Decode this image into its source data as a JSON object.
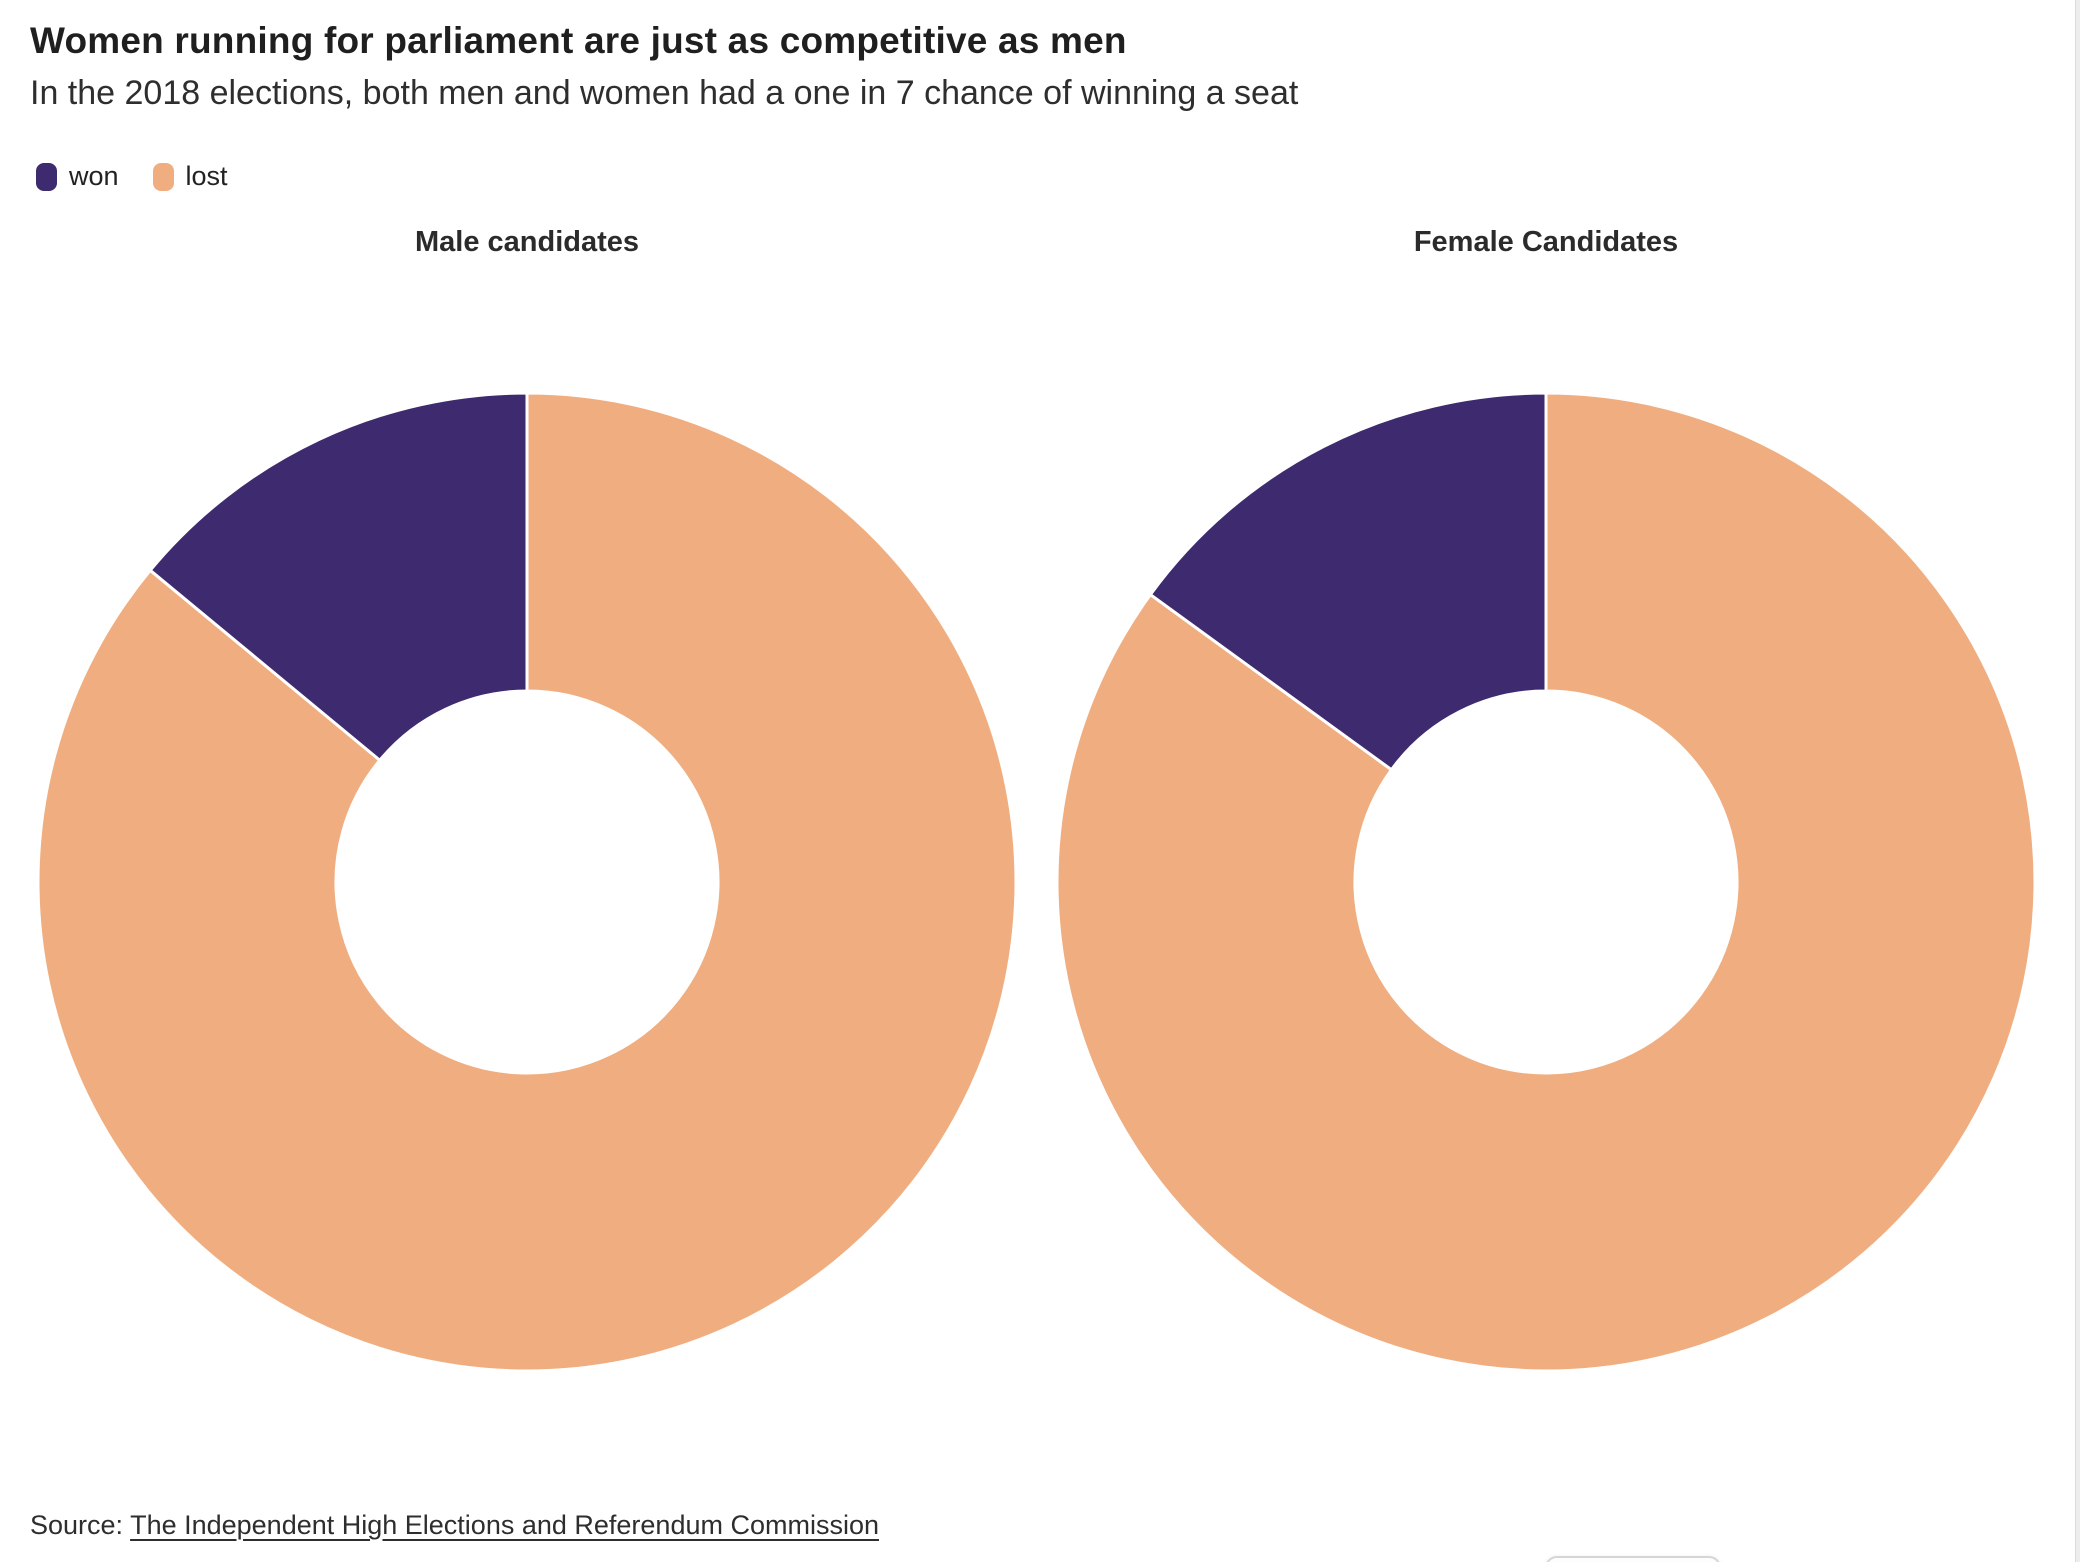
{
  "header": {
    "title": "Women running for parliament are just as competitive as men",
    "subtitle": "In the 2018 elections, both men and women had a one in 7 chance of winning a seat"
  },
  "colors": {
    "won": "#3e2a6f",
    "lost": "#f0ae80",
    "separator": "#ffffff"
  },
  "legend": {
    "items": [
      {
        "label": "won",
        "key": "won"
      },
      {
        "label": "lost",
        "key": "lost"
      }
    ]
  },
  "chart_data": [
    {
      "type": "pie",
      "subtype": "donut",
      "title": "Male candidates",
      "categories": [
        "won",
        "lost"
      ],
      "values": [
        14,
        86
      ],
      "unit": "percent",
      "hole_ratio": 0.39,
      "start": "top",
      "direction": "counterclockwise"
    },
    {
      "type": "pie",
      "subtype": "donut",
      "title": "Female Candidates",
      "categories": [
        "won",
        "lost"
      ],
      "values": [
        15,
        85
      ],
      "unit": "percent",
      "hole_ratio": 0.39,
      "start": "top",
      "direction": "counterclockwise"
    }
  ],
  "source": {
    "prefix": "Source:",
    "link_text": "The Independent High Elections and Referendum Commission"
  }
}
